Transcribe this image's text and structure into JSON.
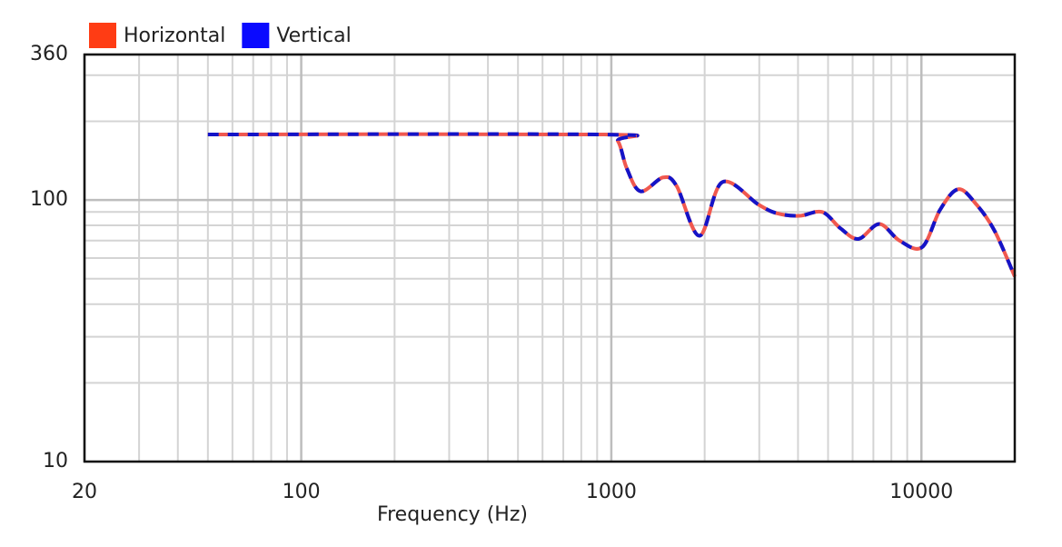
{
  "chart_data": {
    "type": "line",
    "x_label": "Frequency (Hz)",
    "x": [
      50,
      948,
      1050,
      1122,
      1242,
      1470,
      1625,
      1925,
      2279,
      2985,
      3415,
      4043,
      4786,
      5477,
      6266,
      7320,
      8494,
      10048,
      11500,
      13160,
      15060,
      17240,
      20000
    ],
    "series": [
      {
        "name": "Horizontal",
        "color": "#f0584f",
        "swatch": "#ff3c14",
        "values": [
          178,
          178,
          168,
          132,
          108,
          122,
          113,
          73,
          117,
          96,
          89,
          87,
          90,
          78,
          71,
          81,
          70,
          66,
          92,
          110,
          96,
          76,
          51
        ]
      },
      {
        "name": "Vertical",
        "color": "#1414c8",
        "swatch": "#0a0aff",
        "dashed": true,
        "values": [
          178,
          178,
          168,
          132,
          108,
          122,
          113,
          73,
          117,
          96,
          89,
          87,
          90,
          78,
          71,
          81,
          70,
          66,
          92,
          110,
          96,
          76,
          51
        ]
      }
    ],
    "xlim": [
      20,
      20000
    ],
    "xticks": [
      20,
      100,
      1000,
      10000
    ],
    "x_minor_ticks": [
      30,
      40,
      50,
      60,
      70,
      80,
      90,
      200,
      300,
      400,
      500,
      600,
      700,
      800,
      900,
      2000,
      3000,
      4000,
      5000,
      6000,
      7000,
      8000,
      9000
    ],
    "ylim": [
      10,
      360
    ],
    "yticks": [
      10,
      100,
      360
    ],
    "y_minor_ticks": [
      20,
      30,
      40,
      50,
      60,
      70,
      80,
      90,
      200,
      300
    ],
    "log_x": true,
    "log_y": true,
    "grid": true,
    "legend": "top-left"
  }
}
